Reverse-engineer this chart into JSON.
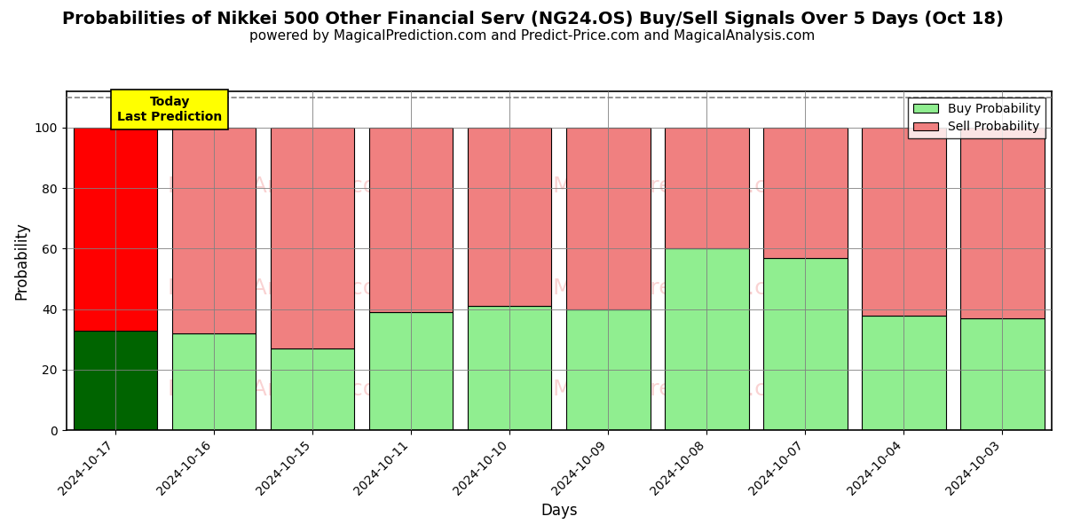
{
  "title": "Probabilities of Nikkei 500 Other Financial Serv (NG24.OS) Buy/Sell Signals Over 5 Days (Oct 18)",
  "subtitle": "powered by MagicalPrediction.com and Predict-Price.com and MagicalAnalysis.com",
  "xlabel": "Days",
  "ylabel": "Probability",
  "categories": [
    "2024-10-17",
    "2024-10-16",
    "2024-10-15",
    "2024-10-11",
    "2024-10-10",
    "2024-10-09",
    "2024-10-08",
    "2024-10-07",
    "2024-10-04",
    "2024-10-03"
  ],
  "buy_values": [
    33,
    32,
    27,
    39,
    41,
    40,
    60,
    57,
    38,
    37
  ],
  "sell_values": [
    67,
    68,
    73,
    61,
    59,
    60,
    40,
    43,
    62,
    63
  ],
  "buy_color_first": "#006400",
  "buy_color_rest": "#90EE90",
  "sell_color_first": "#FF0000",
  "sell_color_rest": "#F08080",
  "bar_edge_color": "#000000",
  "ylim": [
    0,
    112
  ],
  "yticks": [
    0,
    20,
    40,
    60,
    80,
    100
  ],
  "dashed_line_y": 110,
  "legend_buy_color": "#90EE90",
  "legend_sell_color": "#F08080",
  "today_label_color": "#FFFF00",
  "title_fontsize": 14,
  "subtitle_fontsize": 11,
  "axis_label_fontsize": 12,
  "tick_fontsize": 10,
  "bar_width": 0.85,
  "watermark1_text": "MagicalAnalysis.com",
  "watermark2_text": "MagicalPrediction.com",
  "watermark3_text": "MagicalAnalysis.com",
  "watermark4_text": "MagicalPrediction.com",
  "wm_color": "#F08080",
  "wm_alpha": 0.35,
  "wm_fontsize": 18
}
